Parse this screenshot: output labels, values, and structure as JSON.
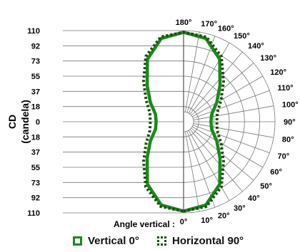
{
  "chart_data": {
    "type": "polar",
    "title": "",
    "ylabel_line1": "CD",
    "ylabel_line2": "(candela)",
    "r_tick_labels_upper": [
      "110",
      "92",
      "73",
      "55",
      "37",
      "18",
      "0"
    ],
    "r_tick_labels_lower": [
      "18",
      "37",
      "55",
      "73",
      "92",
      "110"
    ],
    "r_max": 110,
    "angle_axis_label": "Angle vertical :",
    "angle_labels": [
      "0°",
      "10°",
      "20°",
      "30°",
      "40°",
      "50°",
      "60°",
      "70°",
      "80°",
      "90°",
      "100°",
      "110°",
      "120°",
      "130°",
      "140°",
      "150°",
      "160°",
      "170°",
      "180°"
    ],
    "grid": true,
    "series": [
      {
        "name": "Vertical 0°",
        "style": "solid",
        "color": "#1a8a1a",
        "angles_deg": [
          0,
          15,
          30,
          45,
          60,
          75,
          90,
          105,
          120,
          135,
          150,
          165,
          180
        ],
        "values_cd": [
          108,
          104,
          87,
          62,
          46,
          35,
          33,
          35,
          46,
          62,
          87,
          104,
          108
        ]
      },
      {
        "name": "Horizontal 90°",
        "style": "dotted",
        "color": "#1b4d10",
        "angles_deg": [
          0,
          15,
          30,
          45,
          60,
          75,
          90,
          105,
          120,
          135,
          150,
          165,
          180
        ],
        "values_cd": [
          108,
          106,
          91,
          68,
          52,
          42,
          40,
          42,
          52,
          68,
          91,
          106,
          108
        ]
      }
    ]
  }
}
